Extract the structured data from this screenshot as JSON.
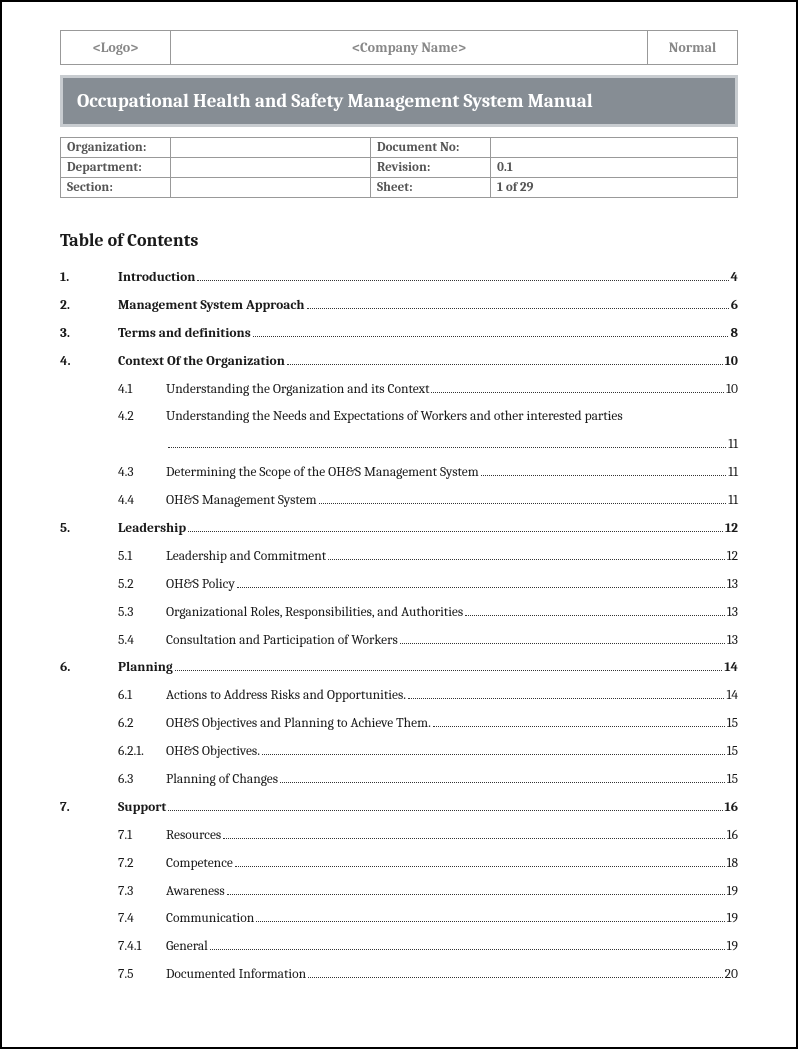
{
  "header": {
    "logo": "<Logo>",
    "company": "<Company Name>",
    "status": "Normal"
  },
  "title": "Occupational Health and Safety Management System Manual",
  "meta": {
    "rows": [
      {
        "l1": "Organization:",
        "v1": "",
        "l2": "Document No:",
        "v2": ""
      },
      {
        "l1": "Department:",
        "v1": "",
        "l2": "Revision:",
        "v2": "0.1"
      },
      {
        "l1": "Section:",
        "v1": "",
        "l2": "Sheet:",
        "v2": "1 of 29"
      }
    ]
  },
  "tocHeading": "Table of Contents",
  "toc": [
    {
      "level": 1,
      "num": "1.",
      "title": "Introduction",
      "page": "4"
    },
    {
      "level": 1,
      "num": "2.",
      "title": "Management System Approach",
      "page": "6"
    },
    {
      "level": 1,
      "num": "3.",
      "title": "Terms and definitions",
      "page": "8"
    },
    {
      "level": 1,
      "num": "4.",
      "title": "Context Of the Organization",
      "page": "10"
    },
    {
      "level": 2,
      "num": "4.1",
      "title": "Understanding the Organization and its Context",
      "page": "10"
    },
    {
      "level": 2,
      "num": "4.2",
      "title": "Understanding the Needs and Expectations of Workers and other interested parties",
      "page": "11",
      "wrap": true
    },
    {
      "level": 2,
      "num": "4.3",
      "title": "Determining the Scope of the OH&S Management System",
      "page": "11"
    },
    {
      "level": 2,
      "num": "4.4",
      "title": "OH&S Management System",
      "page": "11"
    },
    {
      "level": 1,
      "num": "5.",
      "title": "Leadership",
      "page": "12"
    },
    {
      "level": 2,
      "num": "5.1",
      "title": "Leadership and Commitment",
      "page": "12"
    },
    {
      "level": 2,
      "num": "5.2",
      "title": "OH&S Policy",
      "page": "13"
    },
    {
      "level": 2,
      "num": "5.3",
      "title": "Organizational Roles, Responsibilities, and Authorities",
      "page": "13"
    },
    {
      "level": 2,
      "num": "5.4",
      "title": "Consultation and Participation of Workers",
      "page": "13"
    },
    {
      "level": 1,
      "num": "6.",
      "title": "Planning",
      "page": "14"
    },
    {
      "level": 2,
      "num": "6.1",
      "title": "Actions to Address Risks and Opportunities.",
      "page": "14"
    },
    {
      "level": 2,
      "num": "6.2",
      "title": "OH&S Objectives and Planning to Achieve Them.",
      "page": "15"
    },
    {
      "level": 2,
      "num": "6.2.1.",
      "title": "OH&S Objectives.",
      "page": "15"
    },
    {
      "level": 2,
      "num": "6.3",
      "title": "Planning of Changes",
      "page": "15"
    },
    {
      "level": 1,
      "num": "7.",
      "title": "Support",
      "page": "16"
    },
    {
      "level": 2,
      "num": "7.1",
      "title": "Resources",
      "page": "16"
    },
    {
      "level": 2,
      "num": "7.2",
      "title": "Competence",
      "page": "18"
    },
    {
      "level": 2,
      "num": "7.3",
      "title": "Awareness",
      "page": "19"
    },
    {
      "level": 2,
      "num": "7.4",
      "title": "Communication",
      "page": "19"
    },
    {
      "level": 2,
      "num": "7.4.1",
      "title": "General",
      "page": "19"
    },
    {
      "level": 2,
      "num": "7.5",
      "title": "Documented Information",
      "page": "20"
    }
  ]
}
